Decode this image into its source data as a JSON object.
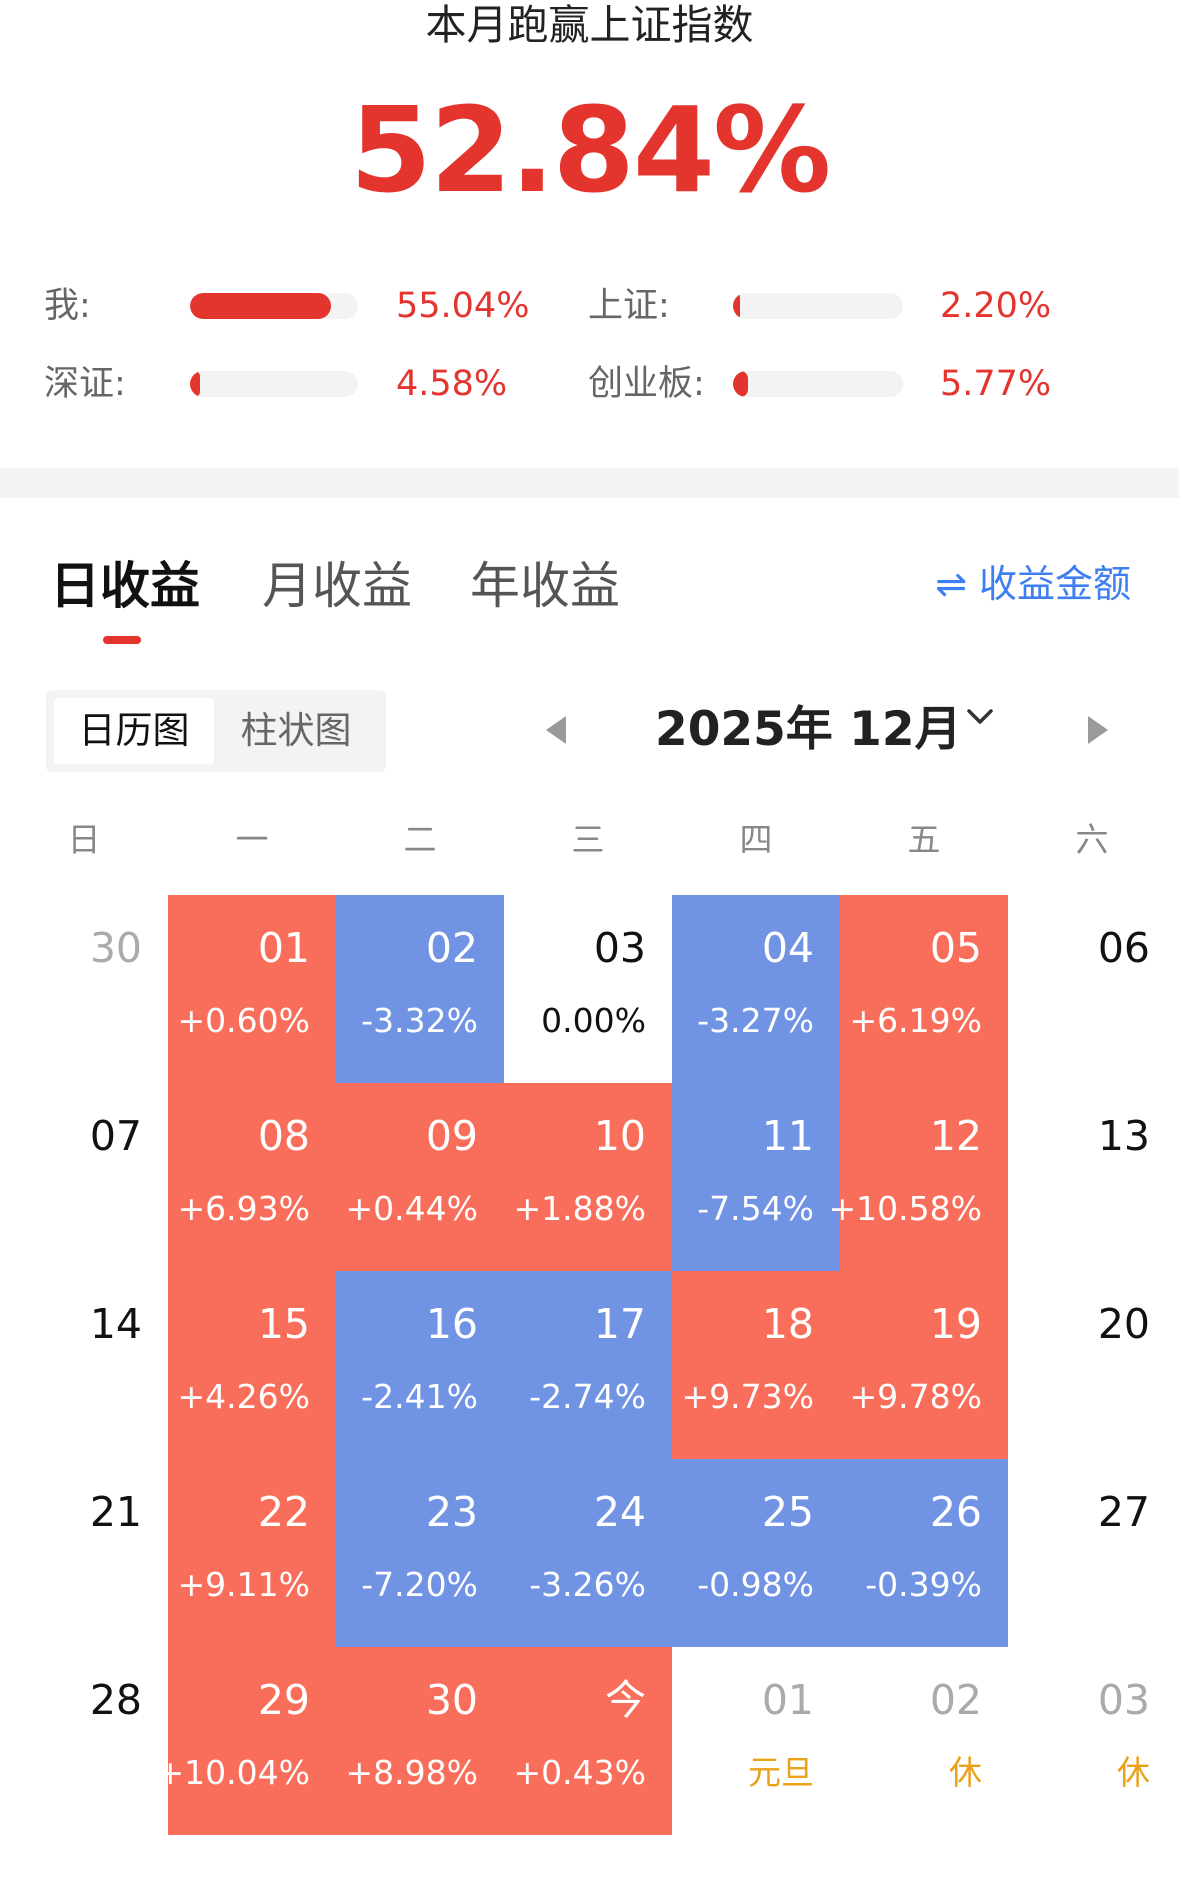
{
  "summary": {
    "title": "本月跑赢上证指数",
    "outperform": "52.84%",
    "comparisons": [
      {
        "label": "我:",
        "value": "55.04%",
        "fill": 0.84
      },
      {
        "label": "上证:",
        "value": "2.20%",
        "fill": 0.04
      },
      {
        "label": "深证:",
        "value": "4.58%",
        "fill": 0.06
      },
      {
        "label": "创业板:",
        "value": "5.77%",
        "fill": 0.09
      }
    ]
  },
  "tabs": [
    {
      "label": "日收益",
      "active": true
    },
    {
      "label": "月收益",
      "active": false
    },
    {
      "label": "年收益",
      "active": false
    }
  ],
  "toggle_label": "⇌ 收益金额",
  "view_switch": {
    "calendar": "日历图",
    "bar": "柱状图"
  },
  "month_label": "2025年 12月",
  "weekdays": [
    "日",
    "一",
    "二",
    "三",
    "四",
    "五",
    "六"
  ],
  "colors": {
    "gain": "#f96e5a",
    "loss": "#7093e3",
    "accent": "#e4342e",
    "link": "#3d7ff0",
    "holiday": "#e9a21a"
  },
  "calendar": [
    [
      {
        "day": "30",
        "pct": "",
        "kind": "muted"
      },
      {
        "day": "01",
        "pct": "+0.60%",
        "kind": "pos"
      },
      {
        "day": "02",
        "pct": "-3.32%",
        "kind": "neg"
      },
      {
        "day": "03",
        "pct": "0.00%",
        "kind": "plain"
      },
      {
        "day": "04",
        "pct": "-3.27%",
        "kind": "neg"
      },
      {
        "day": "05",
        "pct": "+6.19%",
        "kind": "pos"
      },
      {
        "day": "06",
        "pct": "",
        "kind": "plain"
      }
    ],
    [
      {
        "day": "07",
        "pct": "",
        "kind": "plain"
      },
      {
        "day": "08",
        "pct": "+6.93%",
        "kind": "pos"
      },
      {
        "day": "09",
        "pct": "+0.44%",
        "kind": "pos"
      },
      {
        "day": "10",
        "pct": "+1.88%",
        "kind": "pos"
      },
      {
        "day": "11",
        "pct": "-7.54%",
        "kind": "neg"
      },
      {
        "day": "12",
        "pct": "+10.58%",
        "kind": "pos"
      },
      {
        "day": "13",
        "pct": "",
        "kind": "plain"
      }
    ],
    [
      {
        "day": "14",
        "pct": "",
        "kind": "plain"
      },
      {
        "day": "15",
        "pct": "+4.26%",
        "kind": "pos"
      },
      {
        "day": "16",
        "pct": "-2.41%",
        "kind": "neg"
      },
      {
        "day": "17",
        "pct": "-2.74%",
        "kind": "neg"
      },
      {
        "day": "18",
        "pct": "+9.73%",
        "kind": "pos"
      },
      {
        "day": "19",
        "pct": "+9.78%",
        "kind": "pos"
      },
      {
        "day": "20",
        "pct": "",
        "kind": "plain"
      }
    ],
    [
      {
        "day": "21",
        "pct": "",
        "kind": "plain"
      },
      {
        "day": "22",
        "pct": "+9.11%",
        "kind": "pos"
      },
      {
        "day": "23",
        "pct": "-7.20%",
        "kind": "neg"
      },
      {
        "day": "24",
        "pct": "-3.26%",
        "kind": "neg"
      },
      {
        "day": "25",
        "pct": "-0.98%",
        "kind": "neg"
      },
      {
        "day": "26",
        "pct": "-0.39%",
        "kind": "neg"
      },
      {
        "day": "27",
        "pct": "",
        "kind": "plain"
      }
    ],
    [
      {
        "day": "28",
        "pct": "",
        "kind": "plain"
      },
      {
        "day": "29",
        "pct": "+10.04%",
        "kind": "pos"
      },
      {
        "day": "30",
        "pct": "+8.98%",
        "kind": "pos"
      },
      {
        "day": "今",
        "pct": "+0.43%",
        "kind": "pos"
      },
      {
        "day": "01",
        "pct": "元旦",
        "kind": "holiday"
      },
      {
        "day": "02",
        "pct": "休",
        "kind": "holiday"
      },
      {
        "day": "03",
        "pct": "休",
        "kind": "holiday"
      }
    ]
  ]
}
